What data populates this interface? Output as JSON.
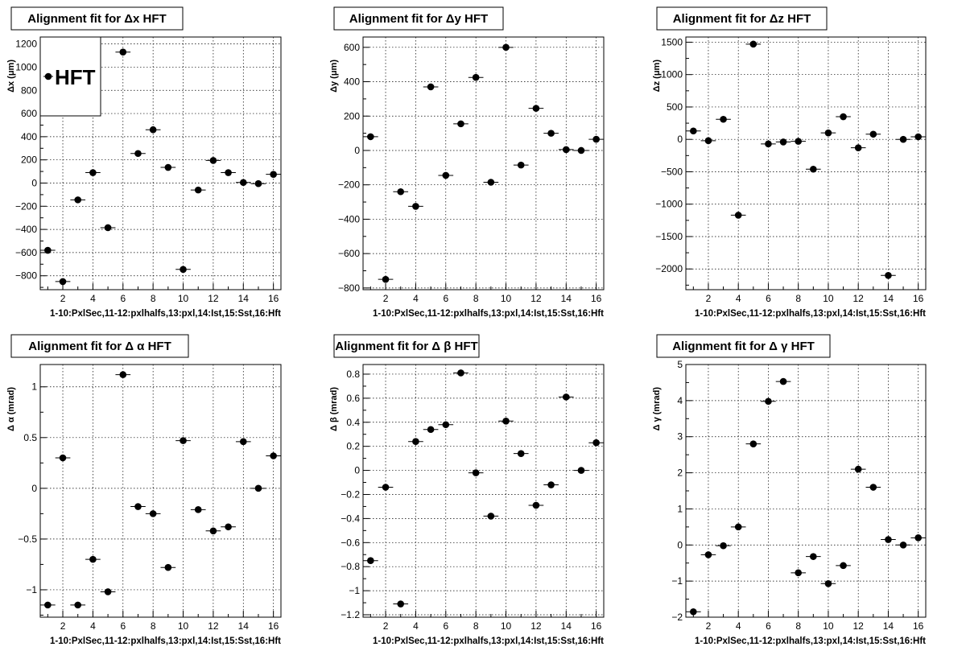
{
  "x_tick_values": [
    2,
    4,
    6,
    8,
    10,
    12,
    14,
    16
  ],
  "chart_data": [
    {
      "type": "scatter",
      "title": "Alignment fit for   Δx HFT",
      "ylabel": "Δx (μm)",
      "xlabel": "1-10:PxlSec,11-12:pxlhalfs,13:pxl,14:Ist,15:Sst,16:Hft",
      "xlim": [
        0.5,
        16.5
      ],
      "ylim": [
        -920,
        1260
      ],
      "yticks": [
        -800,
        -600,
        -400,
        -200,
        0,
        200,
        400,
        600,
        800,
        1000,
        1200
      ],
      "grid": true,
      "legend": "HFT",
      "x": [
        1,
        2,
        3,
        4,
        5,
        6,
        7,
        8,
        9,
        10,
        11,
        12,
        13,
        14,
        15,
        16
      ],
      "y": [
        -580,
        -850,
        -145,
        90,
        -385,
        1130,
        255,
        460,
        135,
        -745,
        -60,
        195,
        90,
        5,
        -5,
        75
      ]
    },
    {
      "type": "scatter",
      "title": "Alignment fit for   Δy HFT",
      "ylabel": "Δy (μm)",
      "xlabel": "1-10:PxlSec,11-12:pxlhalfs,13:pxl,14:Ist,15:Sst,16:Hft",
      "xlim": [
        0.5,
        16.5
      ],
      "ylim": [
        -810,
        660
      ],
      "yticks": [
        -800,
        -600,
        -400,
        -200,
        0,
        200,
        400,
        600
      ],
      "grid": true,
      "x": [
        1,
        2,
        3,
        4,
        5,
        6,
        7,
        8,
        9,
        10,
        11,
        12,
        13,
        14,
        15,
        16
      ],
      "y": [
        80,
        -750,
        -240,
        -325,
        370,
        -145,
        155,
        425,
        -185,
        600,
        -85,
        245,
        100,
        5,
        0,
        65
      ]
    },
    {
      "type": "scatter",
      "title": "Alignment fit for   Δz HFT",
      "ylabel": "Δz (μm)",
      "xlabel": "1-10:PxlSec,11-12:pxlhalfs,13:pxl,14:Ist,15:Sst,16:Hft",
      "xlim": [
        0.5,
        16.5
      ],
      "ylim": [
        -2320,
        1580
      ],
      "yticks": [
        -2000,
        -1500,
        -1000,
        -500,
        0,
        500,
        1000,
        1500
      ],
      "grid": true,
      "x": [
        1,
        2,
        3,
        4,
        5,
        6,
        7,
        8,
        9,
        10,
        11,
        12,
        13,
        14,
        15,
        16
      ],
      "y": [
        130,
        -20,
        310,
        -1170,
        1470,
        -70,
        -40,
        -30,
        -460,
        100,
        350,
        -130,
        80,
        -2100,
        0,
        40
      ]
    },
    {
      "type": "scatter",
      "title": "Alignment fit for   Δ α HFT",
      "ylabel": "Δ α  (mrad)",
      "xlabel": "1-10:PxlSec,11-12:pxlhalfs,13:pxl,14:Ist,15:Sst,16:Hft",
      "xlim": [
        0.5,
        16.5
      ],
      "ylim": [
        -1.27,
        1.22
      ],
      "yticks": [
        -1,
        -0.5,
        0,
        0.5,
        1
      ],
      "grid": true,
      "x": [
        1,
        2,
        3,
        4,
        5,
        6,
        7,
        8,
        9,
        10,
        11,
        12,
        13,
        14,
        15,
        16
      ],
      "y": [
        -1.15,
        0.3,
        -1.15,
        -0.7,
        -1.02,
        1.12,
        -0.18,
        -0.25,
        -0.78,
        0.47,
        -0.21,
        -0.42,
        -0.38,
        0.46,
        0.0,
        0.32
      ]
    },
    {
      "type": "scatter",
      "title": "Alignment fit for   Δ β HFT",
      "ylabel": "Δ β  (mrad)",
      "xlabel": "1-10:PxlSec,11-12:pxlhalfs,13:pxl,14:Ist,15:Sst,16:Hft",
      "xlim": [
        0.5,
        16.5
      ],
      "ylim": [
        -1.22,
        0.88
      ],
      "yticks": [
        -1.2,
        -1,
        -0.8,
        -0.6,
        -0.4,
        -0.2,
        0,
        0.2,
        0.4,
        0.6,
        0.8
      ],
      "grid": true,
      "x": [
        1,
        2,
        3,
        4,
        5,
        6,
        7,
        8,
        9,
        10,
        11,
        12,
        13,
        14,
        15,
        16
      ],
      "y": [
        -0.75,
        -0.14,
        -1.11,
        0.24,
        0.34,
        0.38,
        0.81,
        -0.02,
        -0.38,
        0.41,
        0.14,
        -0.29,
        -0.12,
        0.61,
        0.0,
        0.23
      ]
    },
    {
      "type": "scatter",
      "title": "Alignment fit for   Δ γ HFT",
      "ylabel": "Δ γ  (mrad)",
      "xlabel": "1-10:PxlSec,11-12:pxlhalfs,13:pxl,14:Ist,15:Sst,16:Hft",
      "xlim": [
        0.5,
        16.5
      ],
      "ylim": [
        -2.0,
        5.0
      ],
      "yticks": [
        -2,
        -1,
        0,
        1,
        2,
        3,
        4,
        5
      ],
      "grid": true,
      "x": [
        1,
        2,
        3,
        4,
        5,
        6,
        7,
        8,
        9,
        10,
        11,
        12,
        13,
        14,
        15,
        16
      ],
      "y": [
        -1.85,
        -0.27,
        -0.02,
        0.5,
        2.8,
        3.98,
        4.53,
        -0.77,
        -0.32,
        -1.07,
        -0.57,
        2.1,
        1.6,
        0.15,
        0.0,
        0.2
      ]
    }
  ]
}
